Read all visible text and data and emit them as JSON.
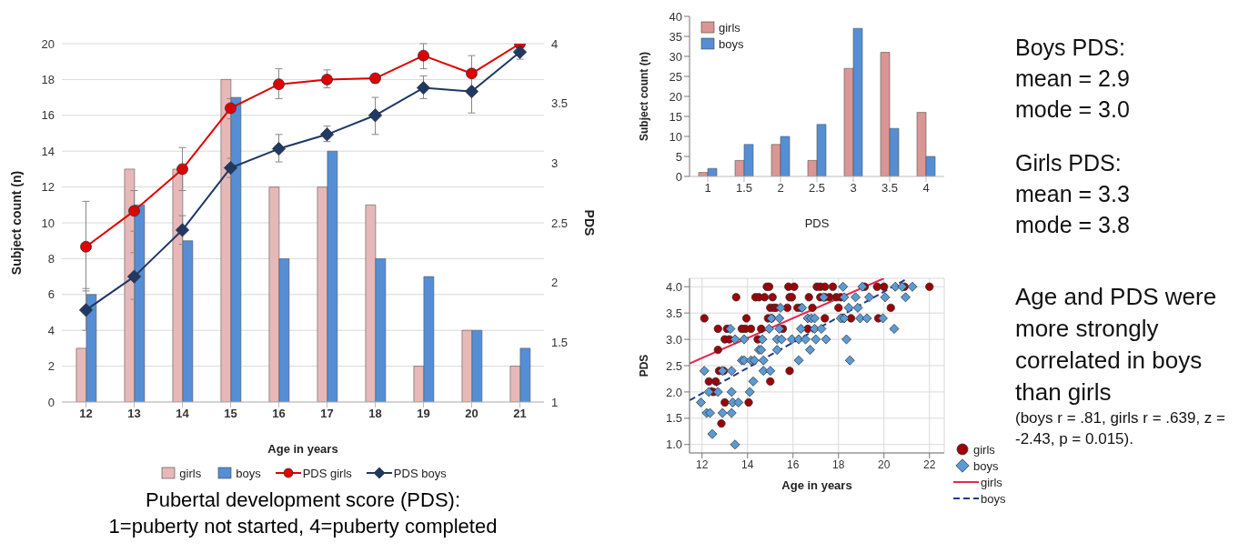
{
  "chart_data": [
    {
      "type": "bar",
      "categories": [
        "12",
        "13",
        "14",
        "15",
        "16",
        "17",
        "18",
        "19",
        "20",
        "21"
      ],
      "xlabel": "Age in years",
      "ylabel": "Subject count (n)",
      "y2label": "PDS",
      "ylim": [
        0,
        20
      ],
      "yticks": [
        0,
        2,
        4,
        6,
        8,
        10,
        12,
        14,
        16,
        18,
        20
      ],
      "y2lim": [
        1,
        4
      ],
      "y2ticks": [
        1,
        1.5,
        2,
        2.5,
        3,
        3.5,
        4
      ],
      "grid": "y",
      "legend": "bottom",
      "series": [
        {
          "name": "girls",
          "color": "#e6b9b8",
          "values": [
            3,
            13,
            13,
            18,
            12,
            12,
            11,
            2,
            4,
            2
          ]
        },
        {
          "name": "boys",
          "color": "#558ed5",
          "values": [
            6,
            11,
            9,
            17,
            8,
            14,
            8,
            7,
            4,
            3
          ]
        },
        {
          "name": "PDS girls",
          "type": "line",
          "axis": "y2",
          "marker": "circle",
          "color": "#e00000",
          "values": [
            2.3,
            2.6,
            2.95,
            3.46,
            3.66,
            3.7,
            3.71,
            3.9,
            3.75,
            4.0
          ],
          "errors": [
            [
              1.93,
              2.68
            ],
            [
              2.43,
              2.77
            ],
            [
              2.77,
              3.13
            ],
            [
              3.37,
              3.54
            ],
            [
              3.54,
              3.79
            ],
            [
              3.63,
              3.78
            ],
            [
              3.67,
              3.73
            ],
            [
              3.79,
              4.0
            ],
            [
              3.75,
              3.9
            ],
            null
          ]
        },
        {
          "name": "PDS boys",
          "type": "line",
          "axis": "y2",
          "marker": "diamond",
          "color": "#1f3864",
          "values": [
            1.77,
            2.05,
            2.44,
            2.96,
            3.12,
            3.24,
            3.4,
            3.63,
            3.6,
            3.93
          ],
          "errors": [
            [
              1.6,
              1.95
            ],
            [
              1.86,
              2.25
            ],
            [
              2.32,
              2.56
            ],
            [
              2.88,
              3.04
            ],
            [
              3.01,
              3.24
            ],
            [
              3.18,
              3.31
            ],
            [
              3.24,
              3.55
            ],
            [
              3.54,
              3.73
            ],
            [
              3.42,
              3.78
            ],
            [
              3.87,
              3.97
            ]
          ]
        }
      ],
      "annotations": [
        "Pubertal development score (PDS):\n1=puberty not started, 4=puberty completed"
      ]
    },
    {
      "type": "bar",
      "categories": [
        "1",
        "1.5",
        "2",
        "2.5",
        "3",
        "3.5",
        "4"
      ],
      "xlabel": "PDS",
      "ylabel": "Subject count (n)",
      "ylim": [
        0,
        40
      ],
      "yticks": [
        0,
        5,
        10,
        15,
        20,
        25,
        30,
        35,
        40
      ],
      "legend": "top left",
      "series": [
        {
          "name": "girls",
          "color": "#d99694",
          "values": [
            1,
            4,
            8,
            4,
            27,
            31,
            16
          ]
        },
        {
          "name": "boys",
          "color": "#558ed5",
          "values": [
            2,
            8,
            10,
            13,
            37,
            12,
            5
          ]
        }
      ]
    },
    {
      "type": "scatter",
      "xlabel": "Age in years",
      "ylabel": "PDS",
      "xlim": [
        11.45,
        22.65
      ],
      "xticks": [
        12,
        14,
        16,
        18,
        20,
        22
      ],
      "ylim": [
        0.84,
        4.16
      ],
      "yticks": [
        {
          "value": 1,
          "label": "1.0"
        },
        {
          "value": 1.5,
          "label": "1.5"
        },
        {
          "value": 2,
          "label": "2.0"
        },
        {
          "value": 2.5,
          "label": "2.5"
        },
        {
          "value": 3,
          "label": "3.0"
        },
        {
          "value": 3.5,
          "label": "3.5"
        },
        {
          "value": 4,
          "label": "4.0"
        }
      ],
      "grid": true,
      "legend": "right",
      "series": [
        {
          "name": "girls",
          "marker": "circle",
          "color": "#9c0006",
          "x": [
            14.85,
            14.95,
            15.8,
            16.05,
            17.05,
            17.2,
            17.4,
            17.75,
            19.15,
            19.7,
            20.0,
            20.9,
            22.0,
            13.5,
            14.35,
            14.5,
            14.75,
            15.1,
            15.85,
            15.95,
            16.7,
            17.2,
            17.4,
            17.6,
            17.9,
            18.1,
            15.0,
            15.15,
            15.25,
            15.75,
            16.2,
            16.35,
            16.85,
            18.0,
            20.3,
            12.1,
            13.95,
            14.9,
            15.05,
            17.4,
            18.2,
            18.55,
            19.75,
            12.7,
            13.1,
            13.75,
            13.9,
            14.15,
            14.6,
            15.55,
            16.65,
            13.0,
            13.2,
            14.45,
            12.7,
            12.75,
            12.95,
            15.85,
            12.3,
            12.6,
            15.0,
            12.5,
            13.0,
            14.05,
            12.85
          ],
          "values": [
            4,
            4,
            4,
            4,
            4,
            4,
            4,
            4,
            4,
            4,
            4,
            4,
            4,
            3.8,
            3.8,
            3.8,
            3.8,
            3.8,
            3.8,
            3.8,
            3.8,
            3.8,
            3.8,
            3.8,
            3.8,
            3.8,
            3.6,
            3.6,
            3.6,
            3.6,
            3.6,
            3.6,
            3.6,
            3.6,
            3.6,
            3.4,
            3.4,
            3.4,
            3.4,
            3.4,
            3.4,
            3.4,
            3.4,
            3.2,
            3.2,
            3.2,
            3.2,
            3.2,
            3.2,
            3.2,
            3.2,
            3.0,
            3.0,
            3.0,
            2.8,
            2.4,
            2.4,
            2.4,
            2.2,
            2.2,
            2.2,
            2.0,
            1.8,
            1.8,
            1.4
          ]
        },
        {
          "name": "boys",
          "marker": "diamond",
          "color": "#5b9bd5",
          "x": [
            18.2,
            19.05,
            20.5,
            20.8,
            21.25,
            17.35,
            18.25,
            18.75,
            19.35,
            20.05,
            20.95,
            15.45,
            16.4,
            18.45,
            18.85,
            15.05,
            15.4,
            16.65,
            16.8,
            16.95,
            18.1,
            18.25,
            18.95,
            19.25,
            19.95,
            13.25,
            14.95,
            15.4,
            16.35,
            16.95,
            17.25,
            20.45,
            13.45,
            13.85,
            14.65,
            15.3,
            15.5,
            15.95,
            16.25,
            16.55,
            17.0,
            17.45,
            18.35,
            14.5,
            14.6,
            15.3,
            16.75,
            13.75,
            13.85,
            14.15,
            14.3,
            14.7,
            16.25,
            18.5,
            12.1,
            12.9,
            13.3,
            14.7,
            15.0,
            14.25,
            12.3,
            12.7,
            13.3,
            14.1,
            11.95,
            13.35,
            13.6,
            12.2,
            12.35,
            12.9,
            13.3,
            12.45,
            13.45
          ],
          "values": [
            4,
            4,
            4,
            4,
            4,
            3.8,
            3.8,
            3.8,
            3.8,
            3.8,
            3.8,
            3.6,
            3.6,
            3.6,
            3.6,
            3.4,
            3.4,
            3.4,
            3.4,
            3.4,
            3.4,
            3.4,
            3.4,
            3.4,
            3.4,
            3.2,
            3.2,
            3.2,
            3.2,
            3.2,
            3.2,
            3.2,
            3.0,
            3.0,
            3.0,
            3.0,
            3.0,
            3.0,
            3.0,
            3.0,
            3.0,
            3.0,
            3.0,
            2.8,
            2.8,
            2.8,
            2.8,
            2.6,
            2.6,
            2.6,
            2.6,
            2.6,
            2.6,
            2.6,
            2.4,
            2.4,
            2.4,
            2.4,
            2.4,
            2.2,
            2.0,
            2.0,
            2.0,
            2.0,
            1.8,
            1.8,
            1.8,
            1.6,
            1.6,
            1.6,
            1.6,
            1.2,
            1.0
          ]
        },
        {
          "name": "girls",
          "type": "line",
          "line_style": "solid",
          "color": "#e8274b",
          "x": [
            11.45,
            20.0
          ],
          "values": [
            2.54,
            4.16
          ]
        },
        {
          "name": "boys",
          "type": "line",
          "line_style": "dashed",
          "color": "#1f3c88",
          "x": [
            11.45,
            21.05
          ],
          "values": [
            1.84,
            4.16
          ]
        }
      ]
    },
    {
      "type": "other",
      "annotations": [
        "Boys PDS:\nmean = 2.9\nmode = 3.0",
        "Girls PDS:\nmean = 3.3\nmode = 3.8",
        "Age and PDS were more strongly correlated in boys than girls",
        "(boys r = .81, girls r = .639, z = -2.43, p = 0.015)."
      ]
    }
  ]
}
